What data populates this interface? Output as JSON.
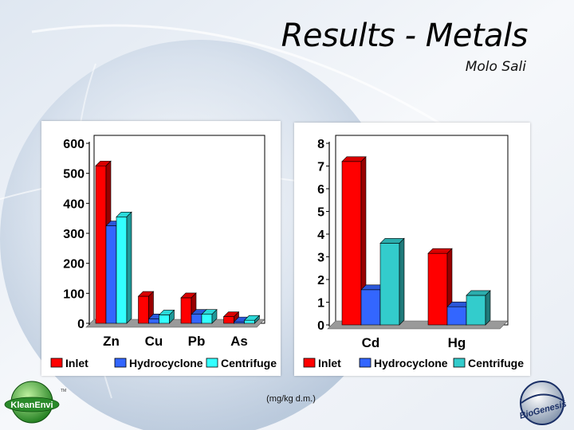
{
  "slide": {
    "title": "Results - Metals",
    "subtitle": "Molo Sali",
    "units_note": "(mg/kg d.m.)"
  },
  "logos": {
    "left_text": "KleanEnvi",
    "left_tm": "TM",
    "right_text": "BioGenesis"
  },
  "colors": {
    "inlet": "#ff0000",
    "hydrocyclone": "#3366ff",
    "centrifuge_left": "#33ffff",
    "centrifuge_right": "#33cccc"
  },
  "chart_data": [
    {
      "type": "bar",
      "categories": [
        "Zn",
        "Cu",
        "Pb",
        "As"
      ],
      "series": [
        {
          "name": "Inlet",
          "values": [
            525,
            90,
            85,
            22
          ]
        },
        {
          "name": "Hydrocyclone",
          "values": [
            325,
            15,
            30,
            5
          ]
        },
        {
          "name": "Centrifuge",
          "values": [
            355,
            28,
            30,
            10
          ]
        }
      ],
      "yticks": [
        "0",
        "100",
        "200",
        "300",
        "400",
        "500",
        "600"
      ],
      "ylim": [
        0,
        600
      ],
      "legend": "bottom",
      "grid": false
    },
    {
      "type": "bar",
      "categories": [
        "Cd",
        "Hg"
      ],
      "series": [
        {
          "name": "Inlet",
          "values": [
            7.2,
            3.15
          ]
        },
        {
          "name": "Hydrocyclone",
          "values": [
            1.55,
            0.8
          ]
        },
        {
          "name": "Centrifuge",
          "values": [
            3.6,
            1.3
          ]
        }
      ],
      "yticks": [
        "0",
        "1",
        "2",
        "3",
        "4",
        "5",
        "6",
        "7",
        "8"
      ],
      "ylim": [
        0,
        8
      ],
      "legend": "bottom",
      "grid": false
    }
  ]
}
